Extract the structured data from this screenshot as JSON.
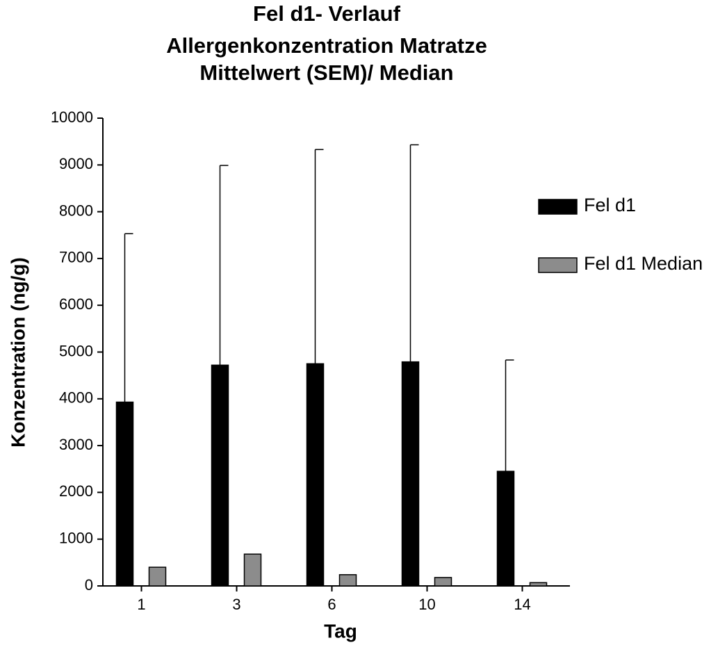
{
  "chart_data": {
    "type": "bar",
    "title": [
      "Fel d1- Verlauf",
      "Allergenkonzentration Matratze",
      "Mittelwert (SEM)/ Median"
    ],
    "x_label": "Tag",
    "y_label": "Konzentration (ng/g)",
    "categories": [
      "1",
      "3",
      "6",
      "10",
      "14"
    ],
    "series": [
      {
        "name": "Fel d1",
        "color": "#000000",
        "values": [
          3930,
          4720,
          4750,
          4790,
          2450
        ],
        "errors": [
          3600,
          4270,
          4580,
          4640,
          2380
        ]
      },
      {
        "name": "Fel d1 Median",
        "color": "#8c8c8c",
        "values": [
          400,
          680,
          240,
          180,
          70
        ]
      }
    ],
    "ylim": [
      0,
      10000
    ],
    "yticks": [
      0,
      1000,
      2000,
      3000,
      4000,
      5000,
      6000,
      7000,
      8000,
      9000,
      10000
    ],
    "legend": "right"
  }
}
